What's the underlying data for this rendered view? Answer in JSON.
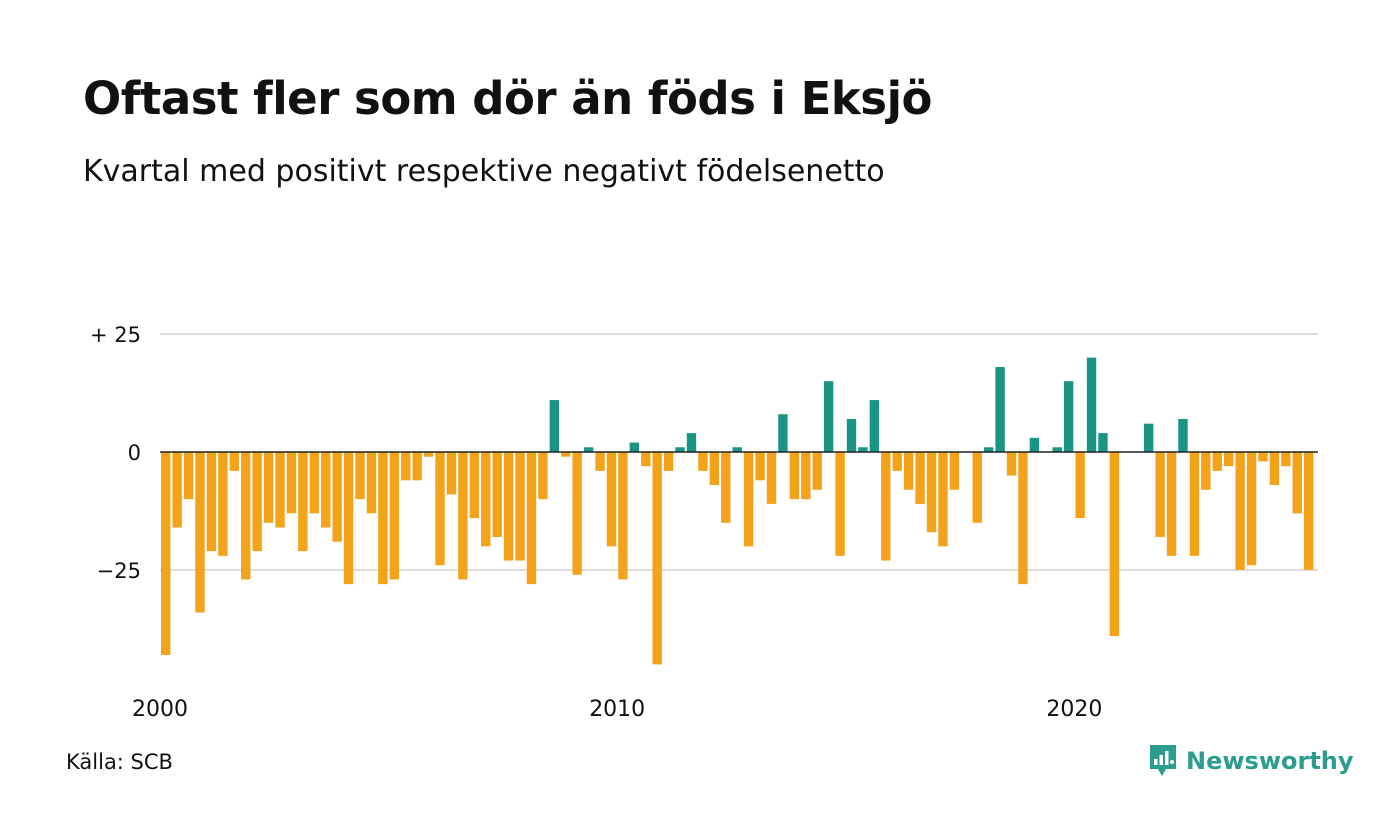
{
  "header": {
    "title": "Oftast fler som dör än föds i Eksjö",
    "subtitle": "Kvartal med positivt respektive negativt födelsenetto"
  },
  "footer": {
    "source": "Källa: SCB",
    "brand": "Newsworthy"
  },
  "colors": {
    "positive": "#1a9483",
    "negative": "#f5a21b",
    "gridline": "#dcdcdc",
    "zeroline": "#222222",
    "brand": "#2a9d8f"
  },
  "chart_data": {
    "type": "bar",
    "title": "Oftast fler som dör än föds i Eksjö",
    "subtitle": "Kvartal med positivt respektive negativt födelsenetto",
    "ylim": [
      -45,
      25
    ],
    "yticks": [
      {
        "value": 25,
        "label": "+ 25"
      },
      {
        "value": 0,
        "label": "0"
      },
      {
        "value": -25,
        "label": "−25"
      }
    ],
    "xticks": [
      {
        "year": 2000,
        "label": "2000"
      },
      {
        "year": 2010,
        "label": "2010"
      },
      {
        "year": 2020,
        "label": "2020"
      }
    ],
    "start_year": 2000,
    "grid": true,
    "values": [
      -43,
      -16,
      -10,
      -34,
      -21,
      -22,
      -4,
      -27,
      -21,
      -15,
      -16,
      -13,
      -21,
      -13,
      -16,
      -19,
      -28,
      -10,
      -13,
      -28,
      -27,
      -6,
      -6,
      -1,
      -24,
      -9,
      -27,
      -14,
      -20,
      -18,
      -23,
      -23,
      -28,
      -10,
      11,
      -1,
      -26,
      1,
      -4,
      -20,
      -27,
      2,
      -3,
      -45,
      -4,
      1,
      4,
      -4,
      -7,
      -15,
      1,
      -20,
      -6,
      -11,
      8,
      -10,
      -10,
      -8,
      15,
      -22,
      7,
      1,
      11,
      -23,
      -4,
      -8,
      -11,
      -17,
      -20,
      -8,
      0,
      -15,
      1,
      18,
      -5,
      -28,
      3,
      0,
      1,
      15,
      -14,
      20,
      4,
      -39,
      0,
      0,
      6,
      -18,
      -22,
      7,
      -22,
      -8,
      -4,
      -3,
      -25,
      -24,
      -2,
      -7,
      -3,
      -13,
      -25
    ]
  }
}
